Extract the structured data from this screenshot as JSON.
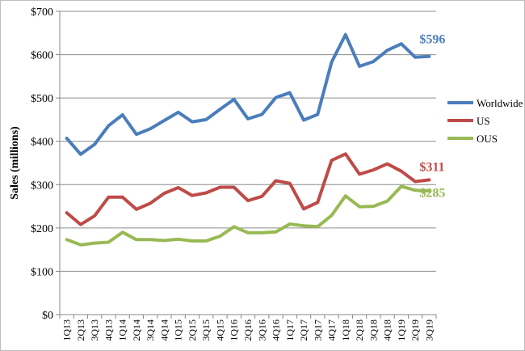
{
  "chart_data": {
    "type": "line",
    "title": "",
    "xlabel": "",
    "ylabel": "Sales (millions)",
    "ylim": [
      0,
      700
    ],
    "y_ticks": [
      "$0",
      "$100",
      "$200",
      "$300",
      "$400",
      "$500",
      "$600",
      "$700"
    ],
    "grid": "horizontal",
    "legend_position": "right",
    "categories": [
      "1Q13",
      "2Q13",
      "3Q13",
      "4Q13",
      "1Q14",
      "2Q14",
      "3Q14",
      "4Q14",
      "1Q15",
      "2Q15",
      "3Q15",
      "4Q15",
      "1Q16",
      "2Q16",
      "3Q16",
      "4Q16",
      "1Q17",
      "2Q17",
      "3Q17",
      "4Q17",
      "1Q18",
      "2Q18",
      "3Q18",
      "4Q18",
      "1Q19",
      "2Q19",
      "3Q19"
    ],
    "series": [
      {
        "name": "Worldwide",
        "color": "#4a7ebb",
        "end_label": "$596",
        "values": [
          407,
          370,
          393,
          436,
          461,
          416,
          429,
          448,
          467,
          445,
          450,
          474,
          497,
          452,
          462,
          501,
          512,
          449,
          462,
          583,
          646,
          573,
          584,
          610,
          625,
          594,
          596
        ]
      },
      {
        "name": "US",
        "color": "#be4b48",
        "end_label": "$311",
        "values": [
          235,
          208,
          228,
          271,
          271,
          243,
          257,
          280,
          293,
          275,
          281,
          294,
          294,
          263,
          273,
          309,
          303,
          244,
          259,
          356,
          371,
          324,
          334,
          348,
          331,
          307,
          311
        ]
      },
      {
        "name": "OUS",
        "color": "#98b954",
        "end_label": "$285",
        "values": [
          173,
          161,
          165,
          167,
          190,
          173,
          173,
          171,
          174,
          170,
          170,
          181,
          203,
          189,
          189,
          191,
          209,
          205,
          203,
          229,
          274,
          249,
          250,
          262,
          296,
          287,
          285
        ]
      }
    ]
  }
}
